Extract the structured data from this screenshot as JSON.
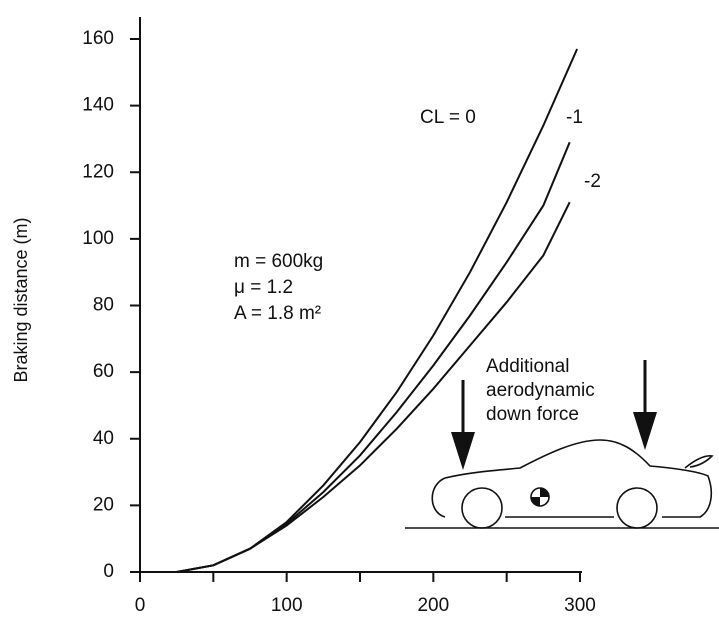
{
  "chart_data": {
    "type": "line",
    "y_label": "Braking distance (m)",
    "xlim": [
      0,
      300
    ],
    "xticks": [
      0,
      100,
      200,
      300
    ],
    "xminorticks": [
      50,
      150,
      250
    ],
    "ylim": [
      0,
      160
    ],
    "yticks": [
      0,
      20,
      40,
      60,
      80,
      100,
      120,
      140,
      160
    ],
    "grid": false,
    "series": [
      {
        "name": "CL = 0",
        "color": "#111111",
        "x": [
          25,
          50,
          75,
          100,
          125,
          150,
          175,
          200,
          225,
          250,
          275,
          298
        ],
        "values": [
          0,
          2,
          7,
          15,
          26,
          39,
          54,
          71,
          90,
          111,
          134,
          157
        ]
      },
      {
        "name": "-1",
        "color": "#111111",
        "x": [
          25,
          50,
          75,
          100,
          125,
          150,
          175,
          200,
          225,
          250,
          275,
          293
        ],
        "values": [
          0,
          2,
          7,
          14.5,
          24,
          35,
          48,
          62,
          77,
          93,
          110,
          129
        ]
      },
      {
        "name": "-2",
        "color": "#111111",
        "x": [
          25,
          50,
          75,
          100,
          125,
          150,
          175,
          200,
          225,
          250,
          275,
          293
        ],
        "values": [
          0,
          2,
          7,
          14,
          22.5,
          32,
          43,
          55,
          68,
          81,
          95,
          111
        ]
      }
    ],
    "annotations": [
      "m = 600kg",
      "μ = 1.2",
      "A = 1.8 m²"
    ],
    "figure_note": [
      "Additional",
      "aerodynamic",
      "down force"
    ]
  }
}
